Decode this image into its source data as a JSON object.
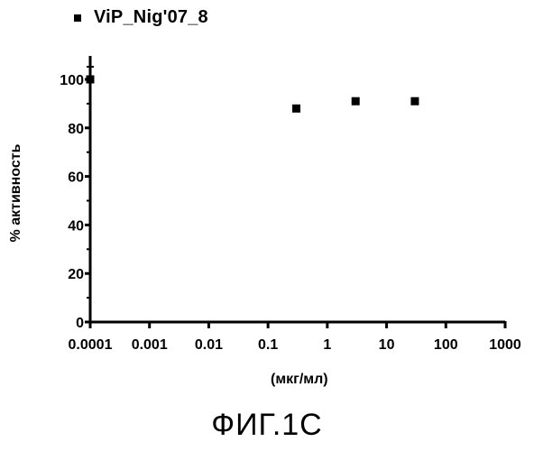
{
  "chart_data": {
    "type": "scatter",
    "xscale": "log",
    "xlim": [
      0.0001,
      1000
    ],
    "ylim": [
      0,
      100
    ],
    "xlabel": "(мкг/мл)",
    "ylabel": "% активность",
    "xticks": [
      "0.0001",
      "0.001",
      "0.01",
      "0.1",
      "1",
      "10",
      "100",
      "1000"
    ],
    "yticks": [
      "0",
      "20",
      "40",
      "60",
      "80",
      "100"
    ],
    "legend_position": "top-left",
    "series": [
      {
        "name": "ViP_Nig'07_8",
        "color": "#000000",
        "marker": "square",
        "x": [
          0.0001,
          0.3,
          3,
          30
        ],
        "y": [
          100,
          88,
          91,
          91
        ]
      }
    ]
  },
  "caption": "ФИГ.1С"
}
